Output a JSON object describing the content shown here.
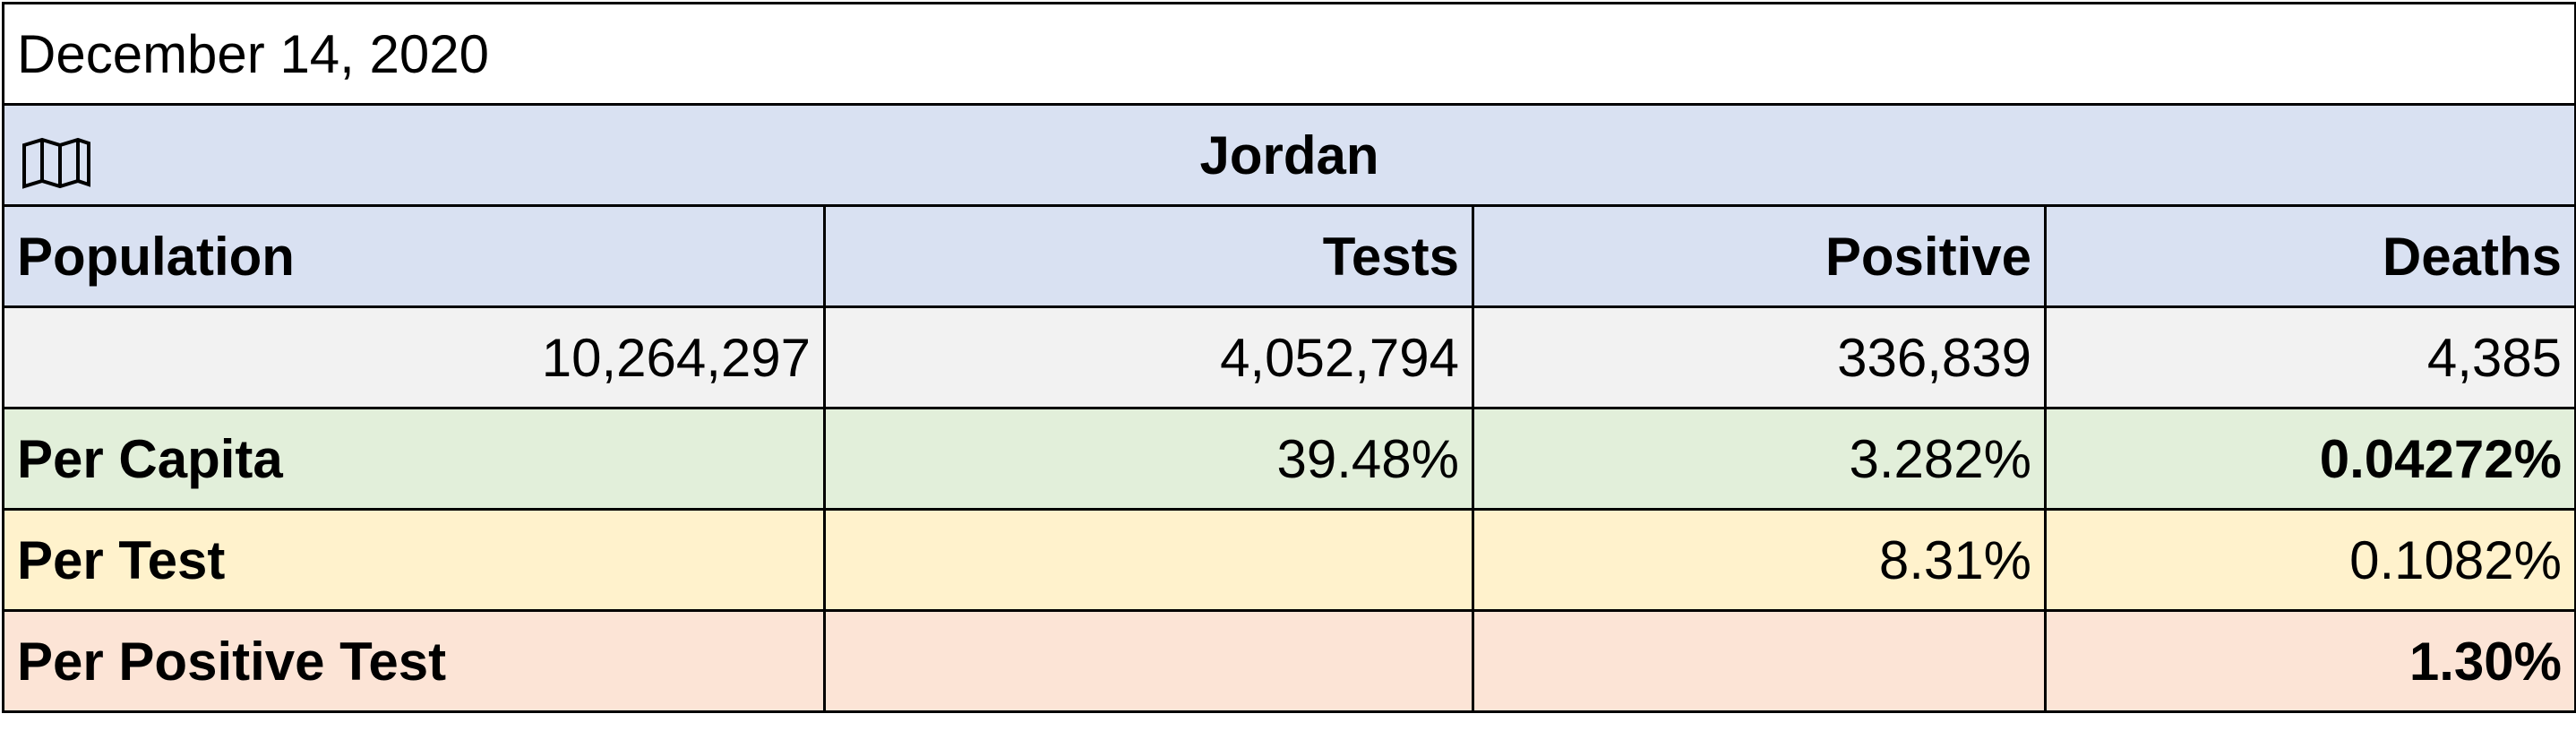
{
  "date": "December 14, 2020",
  "country": "Jordan",
  "headers": [
    "Population",
    "Tests",
    "Positive",
    "Deaths"
  ],
  "counts": {
    "population": "10,264,297",
    "tests": "4,052,794",
    "positive": "336,839",
    "deaths": "4,385"
  },
  "per_capita": {
    "label": "Per Capita",
    "tests": "39.48%",
    "positive": "3.282%",
    "deaths": "0.04272%"
  },
  "per_test": {
    "label": "Per Test",
    "positive": "8.31%",
    "deaths": "0.1082%"
  },
  "per_positive_test": {
    "label": "Per Positive Test",
    "deaths": "1.30%"
  }
}
